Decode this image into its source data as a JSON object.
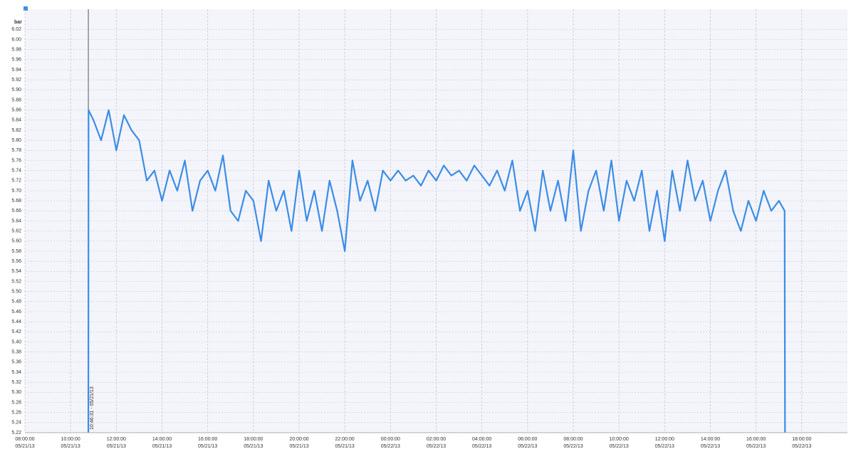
{
  "chart_data": {
    "type": "line",
    "y_label": "bar",
    "xlim": [
      "2013-05-21T08:00:00",
      "2013-05-22T20:00:00"
    ],
    "xticks": [
      {
        "value": "2013-05-21T08:00:00",
        "label": [
          "08:00:00",
          "05/21/13"
        ]
      },
      {
        "value": "2013-05-21T10:00:00",
        "label": [
          "10:00:00",
          "05/21/13"
        ]
      },
      {
        "value": "2013-05-21T12:00:00",
        "label": [
          "12:00:00",
          "05/21/13"
        ]
      },
      {
        "value": "2013-05-21T14:00:00",
        "label": [
          "14:00:00",
          "05/21/13"
        ]
      },
      {
        "value": "2013-05-21T16:00:00",
        "label": [
          "16:00:00",
          "05/21/13"
        ]
      },
      {
        "value": "2013-05-21T18:00:00",
        "label": [
          "18:00:00",
          "05/21/13"
        ]
      },
      {
        "value": "2013-05-21T20:00:00",
        "label": [
          "20:00:00",
          "05/21/13"
        ]
      },
      {
        "value": "2013-05-21T22:00:00",
        "label": [
          "22:00:00",
          "05/21/13"
        ]
      },
      {
        "value": "2013-05-22T00:00:00",
        "label": [
          "00:00:00",
          "05/22/13"
        ]
      },
      {
        "value": "2013-05-22T02:00:00",
        "label": [
          "02:00:00",
          "05/22/13"
        ]
      },
      {
        "value": "2013-05-22T04:00:00",
        "label": [
          "04:00:00",
          "05/22/13"
        ]
      },
      {
        "value": "2013-05-22T06:00:00",
        "label": [
          "06:00:00",
          "05/22/13"
        ]
      },
      {
        "value": "2013-05-22T08:00:00",
        "label": [
          "08:00:00",
          "05/22/13"
        ]
      },
      {
        "value": "2013-05-22T10:00:00",
        "label": [
          "10:00:00",
          "05/22/13"
        ]
      },
      {
        "value": "2013-05-22T12:00:00",
        "label": [
          "12:00:00",
          "05/22/13"
        ]
      },
      {
        "value": "2013-05-22T14:00:00",
        "label": [
          "14:00:00",
          "05/22/13"
        ]
      },
      {
        "value": "2013-05-22T16:00:00",
        "label": [
          "16:00:00",
          "05/22/13"
        ]
      },
      {
        "value": "2013-05-22T18:00:00",
        "label": [
          "18:00:00",
          "05/22/13"
        ]
      }
    ],
    "ylim": [
      5.22,
      6.06
    ],
    "yticks": [
      5.22,
      5.24,
      5.26,
      5.28,
      {
        "value": 5.3,
        "label": "5.30"
      },
      5.32,
      5.34,
      5.36,
      5.38,
      {
        "value": 5.4,
        "label": "5.40"
      },
      5.42,
      5.44,
      5.46,
      5.48,
      {
        "value": 5.5,
        "label": "5.50"
      },
      5.52,
      5.54,
      5.56,
      5.58,
      {
        "value": 5.6,
        "label": "5.60"
      },
      5.62,
      5.64,
      5.66,
      5.68,
      {
        "value": 5.7,
        "label": "5.70"
      },
      5.72,
      5.74,
      5.76,
      5.78,
      {
        "value": 5.8,
        "label": "5.80"
      },
      5.82,
      5.84,
      5.86,
      5.88,
      {
        "value": 5.9,
        "label": "5.90"
      },
      5.92,
      5.94,
      5.96,
      5.98,
      {
        "value": 6,
        "label": "6.00"
      },
      6.02
    ],
    "grid": true,
    "marker": {
      "x": "2013-05-21T10:46:31",
      "label": "10:46:31 - 05/21/13"
    },
    "x": [
      "2013-05-21T10:46:31",
      "2013-05-21T10:47:00",
      "2013-05-21T11:00:00",
      "2013-05-21T11:20:00",
      "2013-05-21T11:40:00",
      "2013-05-21T12:00:00",
      "2013-05-21T12:20:00",
      "2013-05-21T12:40:00",
      "2013-05-21T13:00:00",
      "2013-05-21T13:20:00",
      "2013-05-21T13:40:00",
      "2013-05-21T14:00:00",
      "2013-05-21T14:20:00",
      "2013-05-21T14:40:00",
      "2013-05-21T15:00:00",
      "2013-05-21T15:20:00",
      "2013-05-21T15:40:00",
      "2013-05-21T16:00:00",
      "2013-05-21T16:20:00",
      "2013-05-21T16:40:00",
      "2013-05-21T17:00:00",
      "2013-05-21T17:20:00",
      "2013-05-21T17:40:00",
      "2013-05-21T18:00:00",
      "2013-05-21T18:20:00",
      "2013-05-21T18:40:00",
      "2013-05-21T19:00:00",
      "2013-05-21T19:20:00",
      "2013-05-21T19:40:00",
      "2013-05-21T20:00:00",
      "2013-05-21T20:20:00",
      "2013-05-21T20:40:00",
      "2013-05-21T21:00:00",
      "2013-05-21T21:20:00",
      "2013-05-21T21:40:00",
      "2013-05-21T22:00:00",
      "2013-05-21T22:20:00",
      "2013-05-21T22:40:00",
      "2013-05-21T23:00:00",
      "2013-05-21T23:20:00",
      "2013-05-21T23:40:00",
      "2013-05-22T00:00:00",
      "2013-05-22T00:20:00",
      "2013-05-22T00:40:00",
      "2013-05-22T01:00:00",
      "2013-05-22T01:20:00",
      "2013-05-22T01:40:00",
      "2013-05-22T02:00:00",
      "2013-05-22T02:20:00",
      "2013-05-22T02:40:00",
      "2013-05-22T03:00:00",
      "2013-05-22T03:20:00",
      "2013-05-22T03:40:00",
      "2013-05-22T04:00:00",
      "2013-05-22T04:20:00",
      "2013-05-22T04:40:00",
      "2013-05-22T05:00:00",
      "2013-05-22T05:20:00",
      "2013-05-22T05:40:00",
      "2013-05-22T06:00:00",
      "2013-05-22T06:20:00",
      "2013-05-22T06:40:00",
      "2013-05-22T07:00:00",
      "2013-05-22T07:20:00",
      "2013-05-22T07:40:00",
      "2013-05-22T08:00:00",
      "2013-05-22T08:20:00",
      "2013-05-22T08:40:00",
      "2013-05-22T09:00:00",
      "2013-05-22T09:20:00",
      "2013-05-22T09:40:00",
      "2013-05-22T10:00:00",
      "2013-05-22T10:20:00",
      "2013-05-22T10:40:00",
      "2013-05-22T11:00:00",
      "2013-05-22T11:20:00",
      "2013-05-22T11:40:00",
      "2013-05-22T12:00:00",
      "2013-05-22T12:20:00",
      "2013-05-22T12:40:00",
      "2013-05-22T13:00:00",
      "2013-05-22T13:20:00",
      "2013-05-22T13:40:00",
      "2013-05-22T14:00:00",
      "2013-05-22T14:20:00",
      "2013-05-22T14:40:00",
      "2013-05-22T15:00:00",
      "2013-05-22T15:20:00",
      "2013-05-22T15:40:00",
      "2013-05-22T16:00:00",
      "2013-05-22T16:20:00",
      "2013-05-22T16:40:00",
      "2013-05-22T17:00:00",
      "2013-05-22T17:15:00",
      "2013-05-22T17:16:00"
    ],
    "series": [
      {
        "color": "#3a8ee6",
        "values": [
          5.22,
          5.86,
          5.84,
          5.8,
          5.86,
          5.78,
          5.85,
          5.82,
          5.8,
          5.72,
          5.74,
          5.68,
          5.74,
          5.7,
          5.76,
          5.66,
          5.72,
          5.74,
          5.7,
          5.77,
          5.66,
          5.64,
          5.7,
          5.68,
          5.6,
          5.72,
          5.66,
          5.7,
          5.62,
          5.74,
          5.64,
          5.7,
          5.62,
          5.72,
          5.66,
          5.58,
          5.76,
          5.68,
          5.72,
          5.66,
          5.74,
          5.72,
          5.74,
          5.72,
          5.73,
          5.71,
          5.74,
          5.72,
          5.75,
          5.73,
          5.74,
          5.72,
          5.75,
          5.73,
          5.71,
          5.74,
          5.7,
          5.76,
          5.66,
          5.7,
          5.62,
          5.74,
          5.66,
          5.72,
          5.64,
          5.78,
          5.62,
          5.7,
          5.74,
          5.66,
          5.76,
          5.64,
          5.72,
          5.68,
          5.74,
          5.62,
          5.7,
          5.6,
          5.74,
          5.66,
          5.76,
          5.68,
          5.72,
          5.64,
          5.7,
          5.74,
          5.66,
          5.62,
          5.68,
          5.64,
          5.7,
          5.66,
          5.68,
          5.66,
          5.22
        ]
      }
    ]
  }
}
